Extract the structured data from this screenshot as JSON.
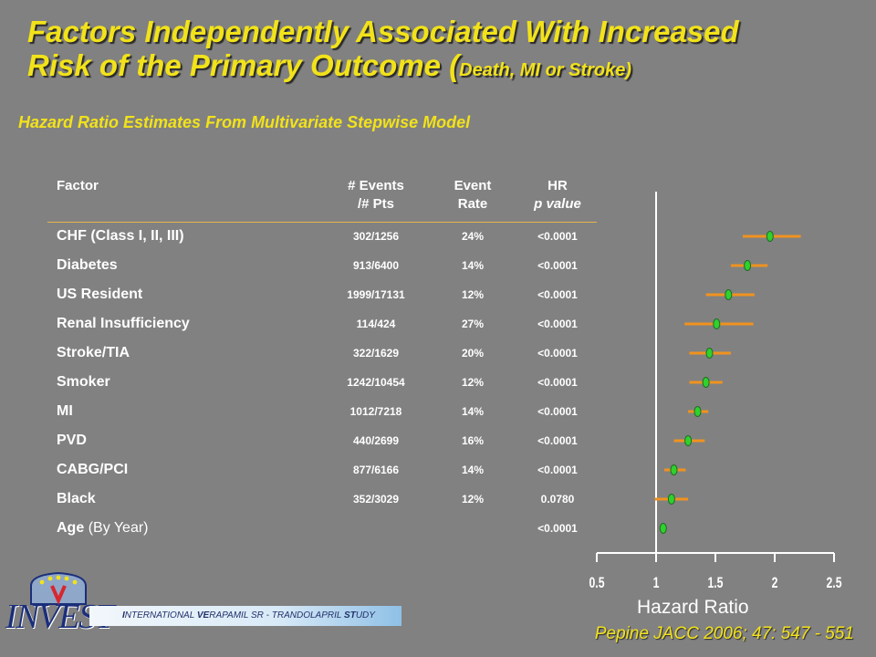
{
  "title": {
    "line1": "Factors Independently Associated With Increased",
    "line2_main": "Risk of the Primary Outcome (",
    "line2_small": "Death, MI or Stroke)"
  },
  "subtitle": "Hazard Ratio Estimates From Multivariate Stepwise Model",
  "table": {
    "headers": {
      "factor": "Factor",
      "events_1": "# Events",
      "events_2": "/# Pts",
      "rate_1": "Event",
      "rate_2": "Rate",
      "hr_1": "HR",
      "hr_2": "p value"
    },
    "rows": [
      {
        "factor": "CHF (Class I, II, III)",
        "factor_note": "",
        "events": "302/1256",
        "rate": "24%",
        "p": "<0.0001"
      },
      {
        "factor": "Diabetes",
        "factor_note": "",
        "events": "913/6400",
        "rate": "14%",
        "p": "<0.0001"
      },
      {
        "factor": "US Resident",
        "factor_note": "",
        "events": "1999/17131",
        "rate": "12%",
        "p": "<0.0001"
      },
      {
        "factor": "Renal Insufficiency",
        "factor_note": "",
        "events": "114/424",
        "rate": "27%",
        "p": "<0.0001"
      },
      {
        "factor": "Stroke/TIA",
        "factor_note": "",
        "events": "322/1629",
        "rate": "20%",
        "p": "<0.0001"
      },
      {
        "factor": "Smoker",
        "factor_note": "",
        "events": "1242/10454",
        "rate": "12%",
        "p": "<0.0001"
      },
      {
        "factor": "MI",
        "factor_note": "",
        "events": "1012/7218",
        "rate": "14%",
        "p": "<0.0001"
      },
      {
        "factor": "PVD",
        "factor_note": "",
        "events": "440/2699",
        "rate": "16%",
        "p": "<0.0001"
      },
      {
        "factor": "CABG/PCI",
        "factor_note": "",
        "events": "877/6166",
        "rate": "14%",
        "p": "<0.0001"
      },
      {
        "factor": "Black",
        "factor_note": "",
        "events": "352/3029",
        "rate": "12%",
        "p": "0.0780"
      },
      {
        "factor": "Age",
        "factor_note": "(By Year)",
        "events": "",
        "rate": "",
        "p": "<0.0001"
      }
    ]
  },
  "chart_data": {
    "type": "scatter",
    "title": "",
    "xlabel": "Hazard Ratio",
    "ylabel": "",
    "xlim": [
      0.5,
      2.5
    ],
    "xticks": [
      "0.5",
      "1",
      "1.5",
      "2",
      "2.5"
    ],
    "categories": [
      "CHF (Class I, II, III)",
      "Diabetes",
      "US Resident",
      "Renal Insufficiency",
      "Stroke/TIA",
      "Smoker",
      "MI",
      "PVD",
      "CABG/PCI",
      "Black",
      "Age"
    ],
    "series": [
      {
        "estimate": [
          1.96,
          1.77,
          1.61,
          1.51,
          1.45,
          1.42,
          1.35,
          1.27,
          1.15,
          1.13,
          1.06
        ],
        "ci_low": [
          1.73,
          1.63,
          1.42,
          1.24,
          1.28,
          1.28,
          1.27,
          1.15,
          1.07,
          0.99,
          1.05
        ],
        "ci_high": [
          2.22,
          1.94,
          1.83,
          1.82,
          1.63,
          1.56,
          1.44,
          1.41,
          1.25,
          1.27,
          1.07
        ]
      }
    ],
    "colors": {
      "ci": "#f0921e",
      "point": "#2fd12f",
      "axis": "#ffffff"
    }
  },
  "xaxis_label": "Hazard Ratio",
  "citation": "Pepine JACC 2006; 47: 547 - 551",
  "logo": {
    "word": "INVEST",
    "banner": {
      "p1": "I",
      "p2": "NTERNATIONAL ",
      "p3": "VE",
      "p4": "RAPAMIL SR - TRANDOLAPRIL ",
      "p5": "ST",
      "p6": "UDY"
    }
  }
}
